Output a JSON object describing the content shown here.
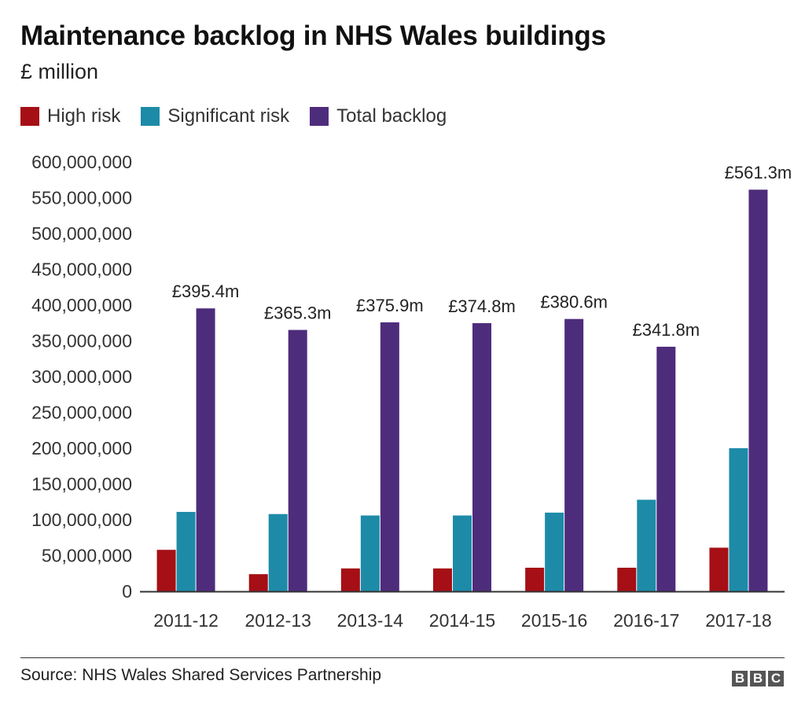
{
  "chart_data": {
    "type": "bar",
    "title": "Maintenance backlog in NHS Wales buildings",
    "subtitle": "£ million",
    "categories": [
      "2011-12",
      "2012-13",
      "2013-14",
      "2014-15",
      "2015-16",
      "2016-17",
      "2017-18"
    ],
    "series": [
      {
        "name": "High risk",
        "color": "#a50f15",
        "values": [
          58000000,
          24000000,
          32000000,
          32000000,
          33000000,
          33000000,
          61000000
        ]
      },
      {
        "name": "Significant risk",
        "color": "#1d8ba8",
        "values": [
          111000000,
          108000000,
          106000000,
          106000000,
          110000000,
          128000000,
          200000000
        ]
      },
      {
        "name": "Total backlog",
        "color": "#4e2c7c",
        "values": [
          395400000,
          365300000,
          375900000,
          374800000,
          380600000,
          341800000,
          561300000
        ],
        "data_labels": [
          "£395.4m",
          "£365.3m",
          "£375.9m",
          "£374.8m",
          "£380.6m",
          "£341.8m",
          "£561.3m"
        ]
      }
    ],
    "yticks": [
      "600,000,000",
      "550,000,000",
      "500,000,000",
      "450,000,000",
      "400,000,000",
      "350,000,000",
      "300,000,000",
      "250,000,000",
      "200,000,000",
      "150,000,000",
      "100,000,000",
      "50,000,000",
      "0"
    ],
    "ylim": [
      0,
      600000000
    ],
    "grid": false,
    "legend": "top-left"
  },
  "footer": {
    "source": "Source: NHS Wales Shared Services Partnership",
    "logo": [
      "B",
      "B",
      "C"
    ]
  }
}
